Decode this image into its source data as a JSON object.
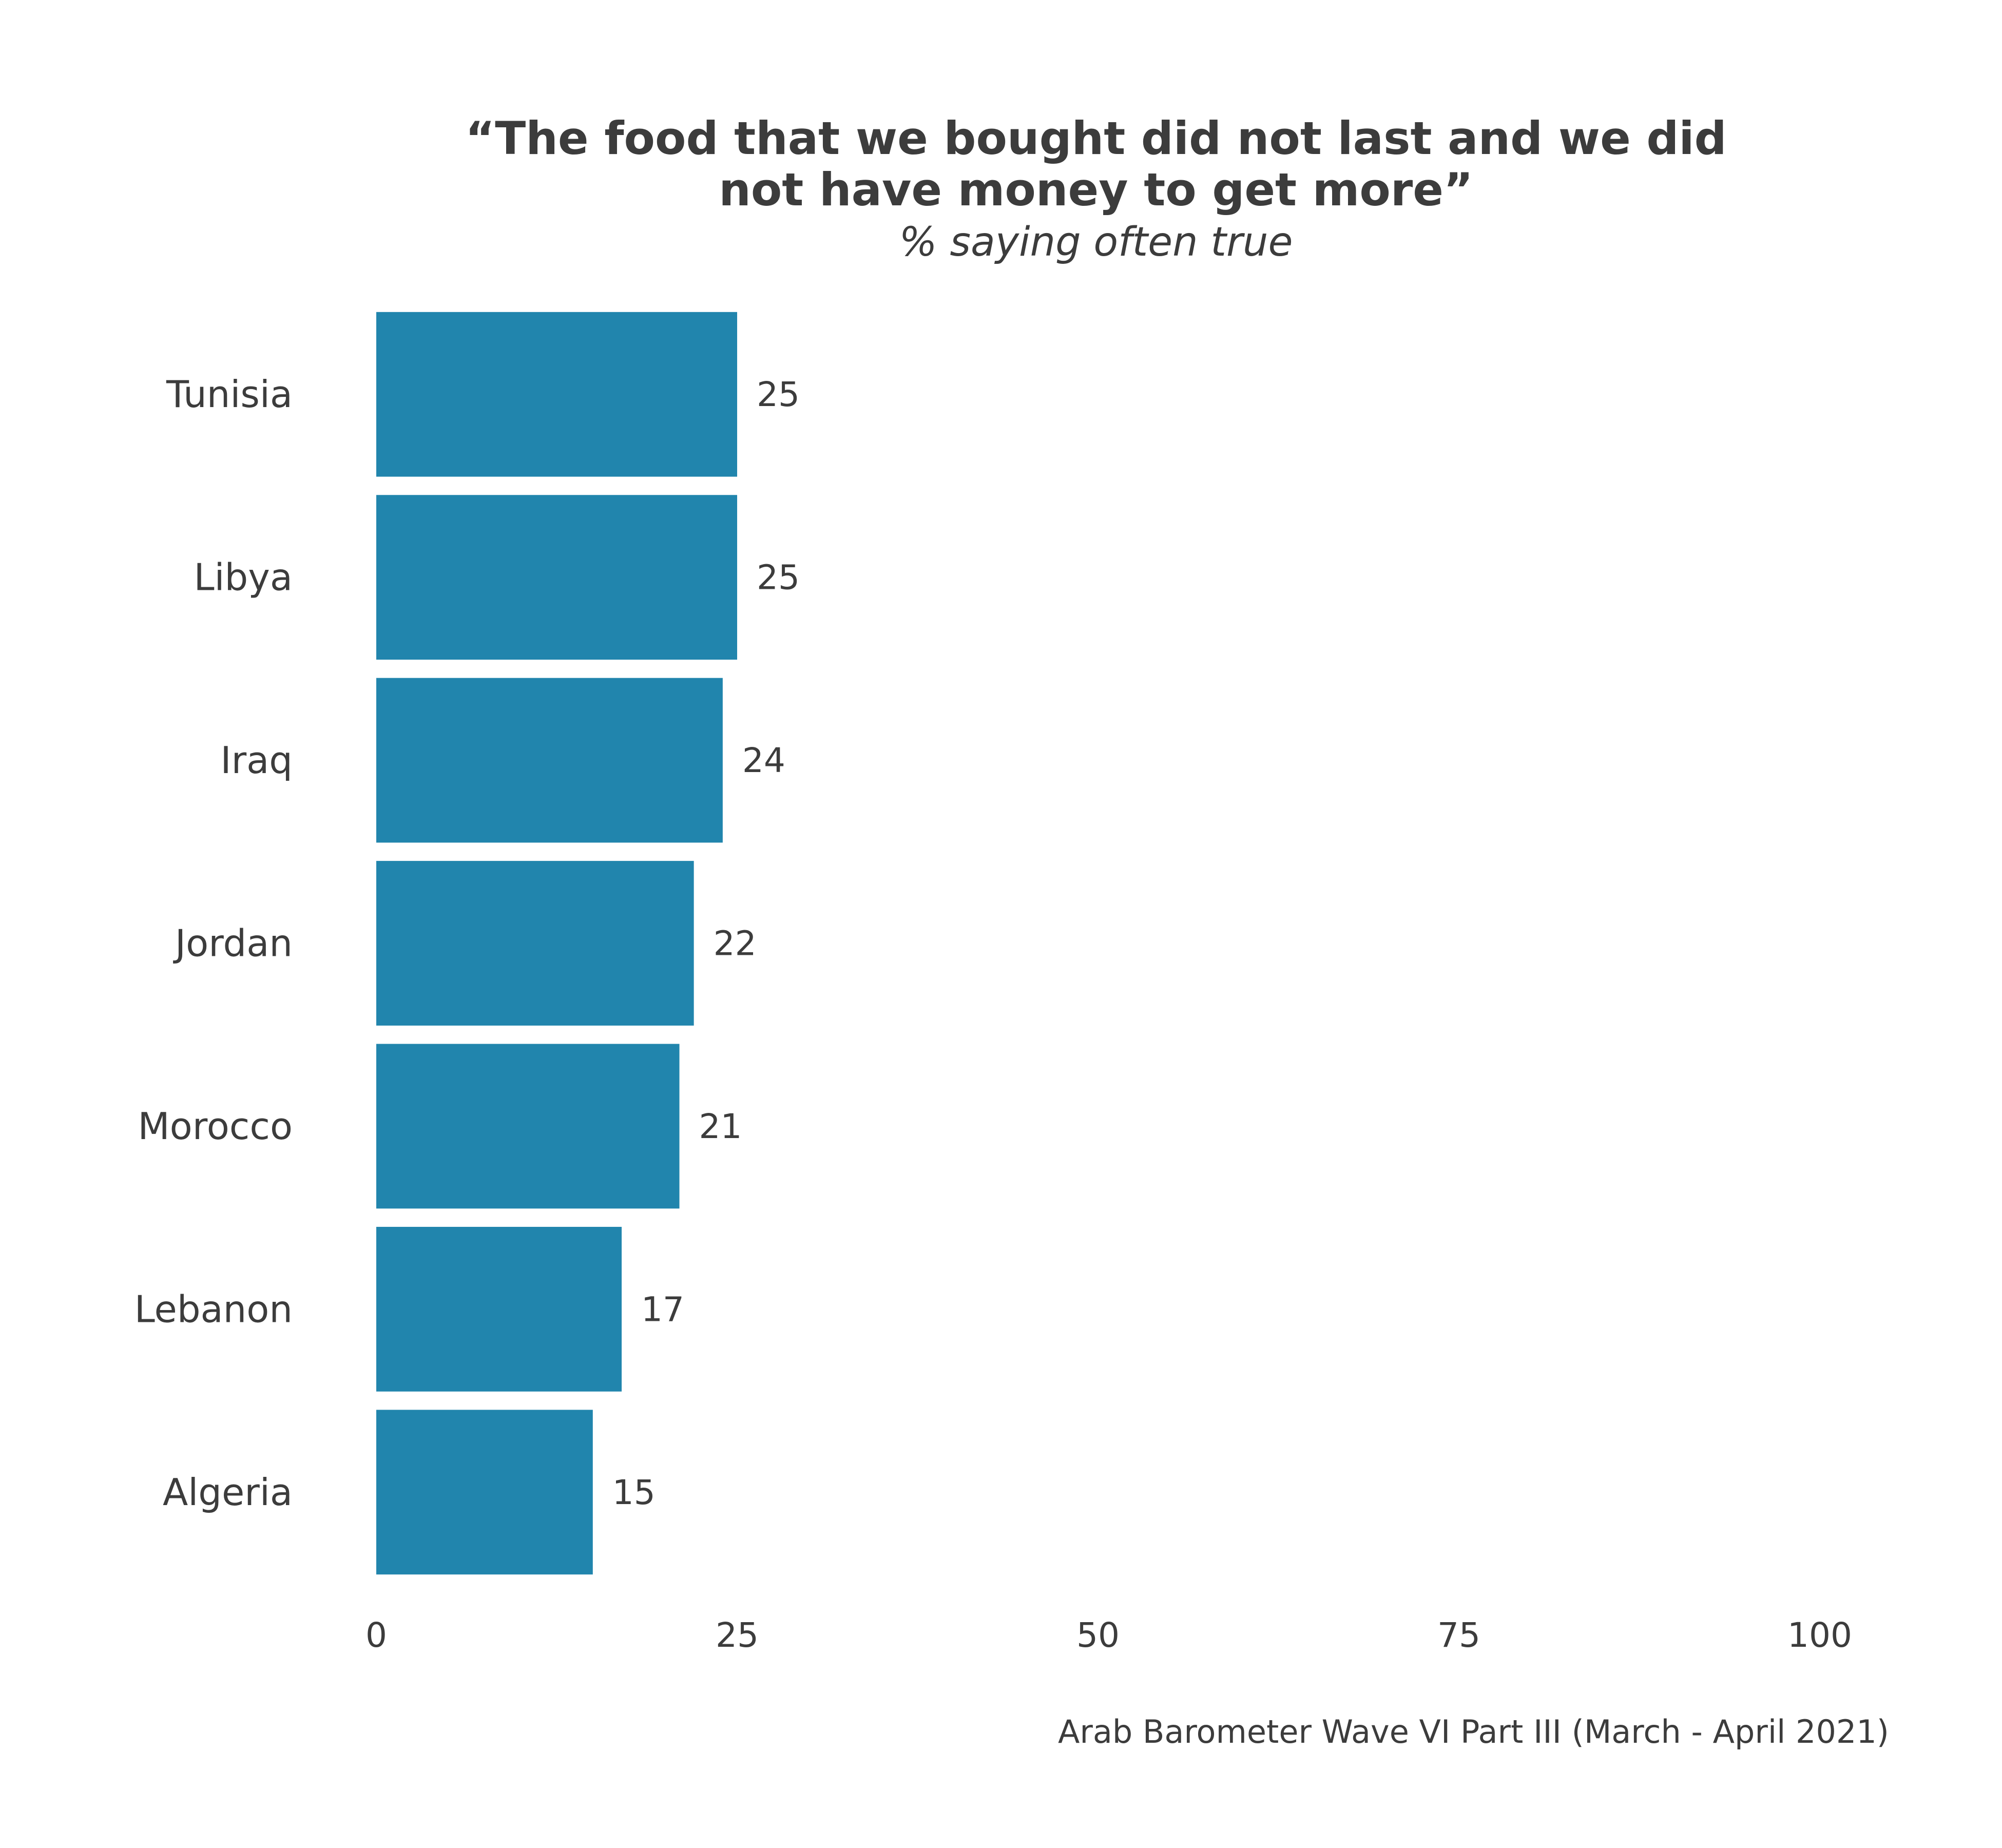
{
  "chart_data": {
    "type": "bar",
    "orientation": "horizontal",
    "title_lines": [
      "“The food that we bought did not last and we did",
      "not have money to get more”"
    ],
    "subtitle": "% saying often true",
    "categories": [
      "Tunisia",
      "Libya",
      "Iraq",
      "Jordan",
      "Morocco",
      "Lebanon",
      "Algeria"
    ],
    "values": [
      25,
      25,
      24,
      22,
      21,
      17,
      15
    ],
    "value_labels": [
      "25",
      "25",
      "24",
      "22",
      "21",
      "17",
      "15"
    ],
    "x_ticks": [
      0,
      25,
      50,
      75,
      100
    ],
    "x_tick_labels": [
      "0",
      "25",
      "50",
      "75",
      "100"
    ],
    "xlim": [
      0,
      100
    ],
    "xlabel": "",
    "ylabel": "",
    "grid": false,
    "legend": "none",
    "caption": "Arab Barometer Wave VI Part III (March - April 2021)",
    "colors": {
      "bar": "#2185ad",
      "text": "#3c3c3c",
      "background": "#ffffff"
    }
  }
}
